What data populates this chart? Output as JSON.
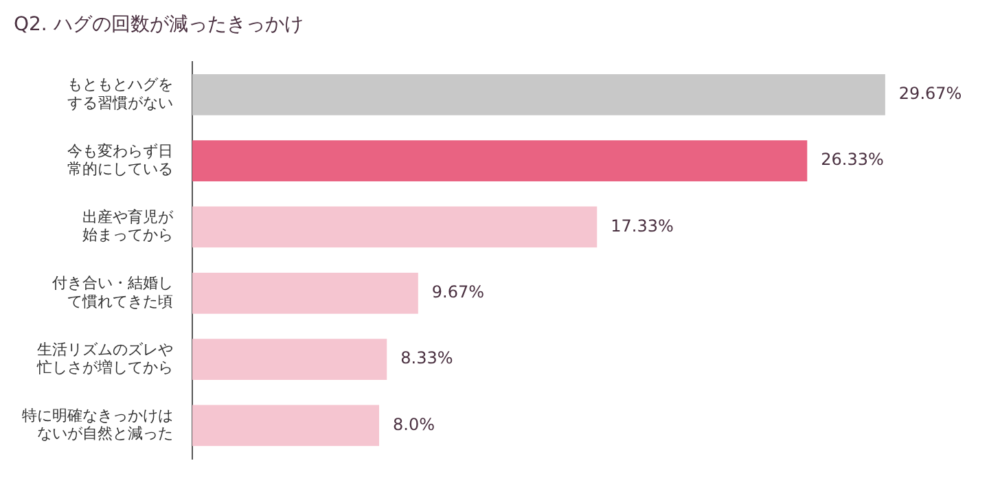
{
  "chart_data": {
    "type": "bar",
    "orientation": "horizontal",
    "title": "Q2. ハグの回数が減ったきっかけ",
    "categories": [
      "もともとハグをする習慣がない",
      "今も変わらず日常的にしている",
      "出産や育児が始まってから",
      "付き合い・結婚して慣れてきた頃",
      "生活リズムのズレや忙しさが増してから",
      "特に明確なきっかけはないが自然と減った"
    ],
    "values": [
      29.67,
      26.33,
      17.33,
      9.67,
      8.33,
      8.0
    ],
    "colors": [
      "#c8c8c8",
      "#e96382",
      "#f5c5d0",
      "#f5c5d0",
      "#f5c5d0",
      "#f5c5d0"
    ],
    "value_labels": [
      "29.67%",
      "26.33%",
      "17.33%",
      "9.67%",
      "8.33%",
      "8.0%"
    ],
    "legend": false
  }
}
